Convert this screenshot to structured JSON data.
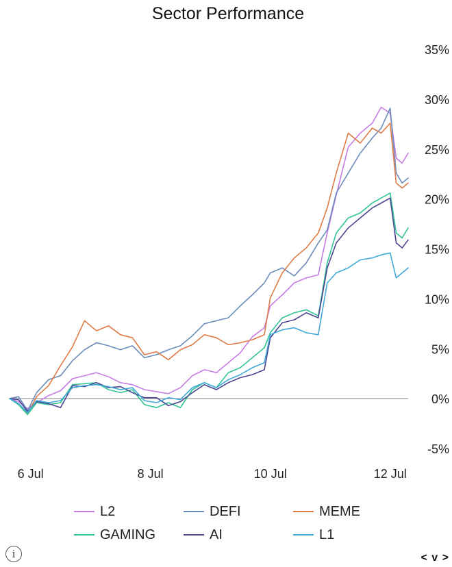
{
  "chart_data": {
    "type": "line",
    "title": "Sector Performance",
    "xlabel": "",
    "ylabel": "",
    "x_range": [
      5.65,
      12.3
    ],
    "x_ticks": [
      {
        "value": 6,
        "label": "6 Jul"
      },
      {
        "value": 8,
        "label": "8 Jul"
      },
      {
        "value": 10,
        "label": "10 Jul"
      },
      {
        "value": 12,
        "label": "12 Jul"
      }
    ],
    "y_range": [
      -5,
      35
    ],
    "y_ticks": [
      {
        "value": 35,
        "label": "35%"
      },
      {
        "value": 30,
        "label": "30%"
      },
      {
        "value": 25,
        "label": "25%"
      },
      {
        "value": 20,
        "label": "20%"
      },
      {
        "value": 15,
        "label": "15%"
      },
      {
        "value": 10,
        "label": "10%"
      },
      {
        "value": 5,
        "label": "5%"
      },
      {
        "value": 0,
        "label": "0%"
      },
      {
        "value": -5,
        "label": "-5%"
      }
    ],
    "zero_line": true,
    "grid": false,
    "legend_position": "bottom",
    "series": [
      {
        "name": "L2",
        "color": "#c77ce6",
        "points": [
          [
            5.65,
            0
          ],
          [
            5.8,
            -0.3
          ],
          [
            5.95,
            -1
          ],
          [
            6.1,
            -0.4
          ],
          [
            6.3,
            0.3
          ],
          [
            6.5,
            0.8
          ],
          [
            6.7,
            2
          ],
          [
            6.9,
            2.3
          ],
          [
            7.1,
            2.6
          ],
          [
            7.3,
            2.2
          ],
          [
            7.5,
            1.6
          ],
          [
            7.7,
            1.4
          ],
          [
            7.9,
            0.9
          ],
          [
            8.1,
            0.7
          ],
          [
            8.3,
            0.5
          ],
          [
            8.5,
            1.1
          ],
          [
            8.7,
            2.3
          ],
          [
            8.9,
            2.9
          ],
          [
            9.1,
            2.6
          ],
          [
            9.3,
            3.6
          ],
          [
            9.5,
            4.6
          ],
          [
            9.7,
            6.2
          ],
          [
            9.9,
            7.1
          ],
          [
            10.0,
            9.3
          ],
          [
            10.2,
            10.4
          ],
          [
            10.4,
            11.6
          ],
          [
            10.6,
            12.1
          ],
          [
            10.8,
            12.4
          ],
          [
            10.95,
            16.6
          ],
          [
            11.1,
            20.4
          ],
          [
            11.3,
            25.2
          ],
          [
            11.5,
            26.6
          ],
          [
            11.7,
            27.6
          ],
          [
            11.85,
            29.2
          ],
          [
            12.0,
            28.6
          ],
          [
            12.1,
            24.1
          ],
          [
            12.2,
            23.6
          ],
          [
            12.3,
            24.6
          ]
        ]
      },
      {
        "name": "DEFI",
        "color": "#6b8cba",
        "points": [
          [
            5.65,
            0
          ],
          [
            5.8,
            0.2
          ],
          [
            5.95,
            -1.2
          ],
          [
            6.1,
            0.6
          ],
          [
            6.3,
            1.9
          ],
          [
            6.5,
            2.3
          ],
          [
            6.7,
            3.8
          ],
          [
            6.9,
            4.9
          ],
          [
            7.1,
            5.6
          ],
          [
            7.3,
            5.3
          ],
          [
            7.5,
            4.9
          ],
          [
            7.7,
            5.3
          ],
          [
            7.9,
            4.1
          ],
          [
            8.1,
            4.4
          ],
          [
            8.3,
            4.9
          ],
          [
            8.5,
            5.3
          ],
          [
            8.7,
            6.3
          ],
          [
            8.9,
            7.5
          ],
          [
            9.1,
            7.8
          ],
          [
            9.3,
            8.1
          ],
          [
            9.5,
            9.3
          ],
          [
            9.7,
            10.4
          ],
          [
            9.9,
            11.6
          ],
          [
            10.0,
            12.6
          ],
          [
            10.2,
            13.1
          ],
          [
            10.4,
            12.3
          ],
          [
            10.6,
            13.6
          ],
          [
            10.8,
            15.6
          ],
          [
            10.95,
            16.9
          ],
          [
            11.1,
            20.6
          ],
          [
            11.3,
            22.6
          ],
          [
            11.5,
            24.6
          ],
          [
            11.7,
            26.1
          ],
          [
            11.85,
            27.1
          ],
          [
            12.0,
            29.1
          ],
          [
            12.1,
            22.6
          ],
          [
            12.2,
            21.6
          ],
          [
            12.3,
            22.1
          ]
        ]
      },
      {
        "name": "MEME",
        "color": "#e07b45",
        "points": [
          [
            5.65,
            0
          ],
          [
            5.8,
            -0.5
          ],
          [
            5.95,
            -1.5
          ],
          [
            6.1,
            0.2
          ],
          [
            6.3,
            1.3
          ],
          [
            6.5,
            3.3
          ],
          [
            6.7,
            5.2
          ],
          [
            6.9,
            7.8
          ],
          [
            7.1,
            6.8
          ],
          [
            7.3,
            7.3
          ],
          [
            7.5,
            6.4
          ],
          [
            7.7,
            6.1
          ],
          [
            7.9,
            4.4
          ],
          [
            8.1,
            4.7
          ],
          [
            8.3,
            3.9
          ],
          [
            8.5,
            4.9
          ],
          [
            8.7,
            5.4
          ],
          [
            8.9,
            6.4
          ],
          [
            9.1,
            6.1
          ],
          [
            9.3,
            5.4
          ],
          [
            9.5,
            5.6
          ],
          [
            9.7,
            5.9
          ],
          [
            9.9,
            6.4
          ],
          [
            10.0,
            10.1
          ],
          [
            10.2,
            12.6
          ],
          [
            10.4,
            14.1
          ],
          [
            10.6,
            15.1
          ],
          [
            10.8,
            16.6
          ],
          [
            10.95,
            19.1
          ],
          [
            11.1,
            22.6
          ],
          [
            11.3,
            26.6
          ],
          [
            11.5,
            25.6
          ],
          [
            11.7,
            27.1
          ],
          [
            11.85,
            26.6
          ],
          [
            12.0,
            27.6
          ],
          [
            12.1,
            21.6
          ],
          [
            12.2,
            21.1
          ],
          [
            12.3,
            21.6
          ]
        ]
      },
      {
        "name": "GAMING",
        "color": "#32c495",
        "points": [
          [
            5.65,
            0
          ],
          [
            5.8,
            -0.6
          ],
          [
            5.95,
            -1.6
          ],
          [
            6.1,
            -0.4
          ],
          [
            6.3,
            -0.6
          ],
          [
            6.5,
            -0.4
          ],
          [
            6.7,
            1.4
          ],
          [
            6.9,
            1.5
          ],
          [
            7.1,
            1.6
          ],
          [
            7.3,
            0.9
          ],
          [
            7.5,
            0.6
          ],
          [
            7.7,
            0.9
          ],
          [
            7.9,
            -0.6
          ],
          [
            8.1,
            -0.9
          ],
          [
            8.3,
            -0.4
          ],
          [
            8.5,
            -0.9
          ],
          [
            8.7,
            0.9
          ],
          [
            8.9,
            1.6
          ],
          [
            9.1,
            1.1
          ],
          [
            9.3,
            2.6
          ],
          [
            9.5,
            3.1
          ],
          [
            9.7,
            4.1
          ],
          [
            9.9,
            5.1
          ],
          [
            10.0,
            6.6
          ],
          [
            10.2,
            8.1
          ],
          [
            10.4,
            8.6
          ],
          [
            10.6,
            8.9
          ],
          [
            10.8,
            8.3
          ],
          [
            10.95,
            13.6
          ],
          [
            11.1,
            16.6
          ],
          [
            11.3,
            18.1
          ],
          [
            11.5,
            18.6
          ],
          [
            11.7,
            19.6
          ],
          [
            11.85,
            20.1
          ],
          [
            12.0,
            20.6
          ],
          [
            12.1,
            16.6
          ],
          [
            12.2,
            16.1
          ],
          [
            12.3,
            17.1
          ]
        ]
      },
      {
        "name": "AI",
        "color": "#4a4690",
        "points": [
          [
            5.65,
            0
          ],
          [
            5.8,
            -0.1
          ],
          [
            5.95,
            -1.3
          ],
          [
            6.1,
            -0.3
          ],
          [
            6.3,
            -0.5
          ],
          [
            6.5,
            -0.9
          ],
          [
            6.7,
            1.3
          ],
          [
            6.9,
            1.2
          ],
          [
            7.1,
            1.6
          ],
          [
            7.3,
            1.1
          ],
          [
            7.5,
            1.2
          ],
          [
            7.7,
            0.6
          ],
          [
            7.9,
            0.1
          ],
          [
            8.1,
            0.1
          ],
          [
            8.3,
            -0.7
          ],
          [
            8.5,
            -0.3
          ],
          [
            8.7,
            0.6
          ],
          [
            8.9,
            1.4
          ],
          [
            9.1,
            0.9
          ],
          [
            9.3,
            1.6
          ],
          [
            9.5,
            2.1
          ],
          [
            9.7,
            2.4
          ],
          [
            9.9,
            2.9
          ],
          [
            10.0,
            6.1
          ],
          [
            10.2,
            7.6
          ],
          [
            10.4,
            7.9
          ],
          [
            10.6,
            8.6
          ],
          [
            10.8,
            8.1
          ],
          [
            10.95,
            13.1
          ],
          [
            11.1,
            15.6
          ],
          [
            11.3,
            17.1
          ],
          [
            11.5,
            18.1
          ],
          [
            11.7,
            19.1
          ],
          [
            11.85,
            19.6
          ],
          [
            12.0,
            20.1
          ],
          [
            12.1,
            15.6
          ],
          [
            12.2,
            15.1
          ],
          [
            12.3,
            15.9
          ]
        ]
      },
      {
        "name": "L1",
        "color": "#3fa8d8",
        "points": [
          [
            5.65,
            0
          ],
          [
            5.8,
            -0.5
          ],
          [
            5.95,
            -1.4
          ],
          [
            6.1,
            -0.2
          ],
          [
            6.3,
            -0.4
          ],
          [
            6.5,
            -0.2
          ],
          [
            6.7,
            1.1
          ],
          [
            6.9,
            1.3
          ],
          [
            7.1,
            1.4
          ],
          [
            7.3,
            1.2
          ],
          [
            7.5,
            0.9
          ],
          [
            7.7,
            1.1
          ],
          [
            7.9,
            -0.2
          ],
          [
            8.1,
            -0.4
          ],
          [
            8.3,
            0.1
          ],
          [
            8.5,
            -0.1
          ],
          [
            8.7,
            1.1
          ],
          [
            8.9,
            1.6
          ],
          [
            9.1,
            1.1
          ],
          [
            9.3,
            1.9
          ],
          [
            9.5,
            2.4
          ],
          [
            9.7,
            3.1
          ],
          [
            9.9,
            3.6
          ],
          [
            10.0,
            6.4
          ],
          [
            10.2,
            6.9
          ],
          [
            10.4,
            7.1
          ],
          [
            10.6,
            6.6
          ],
          [
            10.8,
            6.4
          ],
          [
            10.95,
            11.6
          ],
          [
            11.1,
            12.6
          ],
          [
            11.3,
            13.1
          ],
          [
            11.5,
            13.9
          ],
          [
            11.7,
            14.1
          ],
          [
            11.85,
            14.4
          ],
          [
            12.0,
            14.6
          ],
          [
            12.1,
            12.1
          ],
          [
            12.2,
            12.6
          ],
          [
            12.3,
            13.1
          ]
        ]
      }
    ]
  },
  "ui": {
    "info_icon": "info-icon",
    "info_glyph": "i",
    "nav_prev": "<",
    "nav_menu": "v",
    "nav_next": ">"
  }
}
